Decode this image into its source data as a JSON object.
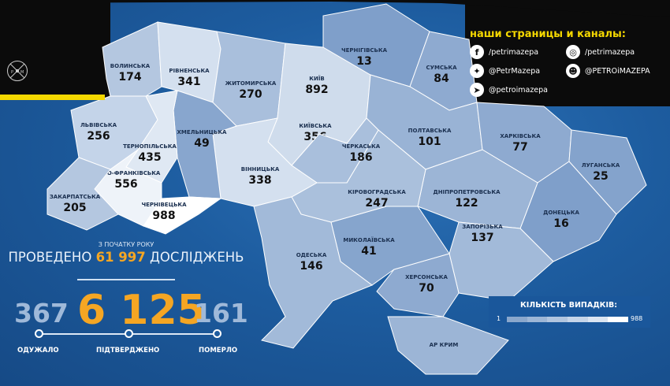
{
  "social": {
    "title": "наши страницы и каналы:",
    "items": [
      {
        "icon": "facebook-icon",
        "glyph": "f",
        "handle": "/petrimazepa"
      },
      {
        "icon": "instagram-icon",
        "glyph": "◎",
        "handle": "/petrimazepa"
      },
      {
        "icon": "twitter-icon",
        "glyph": "✦",
        "handle": "@PetrMazepa"
      },
      {
        "icon": "reddit-icon",
        "glyph": "☻",
        "handle": "@PETROiMAZEPA"
      },
      {
        "icon": "telegram-icon",
        "glyph": "➤",
        "handle": "@petroimazepa"
      }
    ]
  },
  "logo": {
    "letters": "P M"
  },
  "stats": {
    "since": "З ПОЧАТКУ РОКУ",
    "tests_prefix": "ПРОВЕДЕНО",
    "tests": "61 997",
    "tests_suffix": "ДОСЛІДЖЕНЬ",
    "recovered": "367",
    "confirmed": "6 125",
    "deaths": "161",
    "recovered_label": "ОДУЖАЛО",
    "confirmed_label": "ПІДТВЕРДЖЕНО",
    "deaths_label": "ПОМЕРЛО"
  },
  "legend": {
    "title": "КІЛЬКІСТЬ ВИПАДКІВ:",
    "min": "1",
    "max": "988",
    "scale": [
      "#8aa7cc",
      "#9db6d6",
      "#b1c5df",
      "#c6d5e9",
      "#dbe5f2",
      "#ffffff"
    ]
  },
  "colors": {
    "background": "#1d5c9f",
    "accent": "#f5a623",
    "yellow": "#f5d800"
  },
  "regions": [
    {
      "name": "ВОЛИНСЬКА",
      "cases": "174",
      "fill": "#b4c7e0"
    },
    {
      "name": "РІВНЕНСЬКА",
      "cases": "341",
      "fill": "#d4e0ef"
    },
    {
      "name": "ЖИТОМИРСЬКА",
      "cases": "270",
      "fill": "#a9bfdc"
    },
    {
      "name": "КИЇВСЬКА",
      "cases": "356",
      "fill": "#cfdcec"
    },
    {
      "name": "ЧЕРНІГІВСЬКА",
      "cases": "13",
      "fill": "#7f9fca"
    },
    {
      "name": "СУМСЬКА",
      "cases": "84",
      "fill": "#8eaad0"
    },
    {
      "name": "ПОЛТАВСЬКА",
      "cases": "101",
      "fill": "#99b3d5"
    },
    {
      "name": "ХАРКІВСЬКА",
      "cases": "77",
      "fill": "#8eaad0"
    },
    {
      "name": "ЛУГАНСЬКА",
      "cases": "25",
      "fill": "#84a3cc"
    },
    {
      "name": "ДОНЕЦЬКА",
      "cases": "16",
      "fill": "#7f9fca"
    },
    {
      "name": "ДНІПРОПЕТРОВСЬКА",
      "cases": "122",
      "fill": "#9cb5d6"
    },
    {
      "name": "ЗАПОРІЗЬКА",
      "cases": "137",
      "fill": "#a2bad9"
    },
    {
      "name": "ХЕРСОНСЬКА",
      "cases": "70",
      "fill": "#8eaad0"
    },
    {
      "name": "АР КРИМ",
      "cases": "",
      "fill": "#9cb5d6"
    },
    {
      "name": "МИКОЛАЇВСЬКА",
      "cases": "41",
      "fill": "#86a5cd"
    },
    {
      "name": "КІРОВОГРАДСЬКА",
      "cases": "247",
      "fill": "#aac0dc"
    },
    {
      "name": "ЧЕРКАСЬКА",
      "cases": "186",
      "fill": "#a9bfdc"
    },
    {
      "name": "ВІННИЦЬКА",
      "cases": "338",
      "fill": "#d4e0ef"
    },
    {
      "name": "ХМЕЛЬНИЦЬКА",
      "cases": "49",
      "fill": "#88a6ce"
    },
    {
      "name": "ЛЬВІВСЬКА",
      "cases": "256",
      "fill": "#c4d4e9"
    },
    {
      "name": "ТЕРНОПІЛЬСЬКА",
      "cases": "435",
      "fill": "#dfe8f3"
    },
    {
      "name": "ІВАНО-ФРАНКІВСЬКА",
      "cases": "556",
      "fill": "#eef3f9"
    },
    {
      "name": "ЗАКАРПАТСЬКА",
      "cases": "205",
      "fill": "#b4c7e0"
    },
    {
      "name": "ЧЕРНІВЕЦЬКА",
      "cases": "988",
      "fill": "#ffffff"
    },
    {
      "name": "ОДЕСЬКА",
      "cases": "146",
      "fill": "#a2bad9"
    },
    {
      "name": "КИЇВ",
      "cases": "892",
      "fill": "#f2f6fb"
    }
  ]
}
